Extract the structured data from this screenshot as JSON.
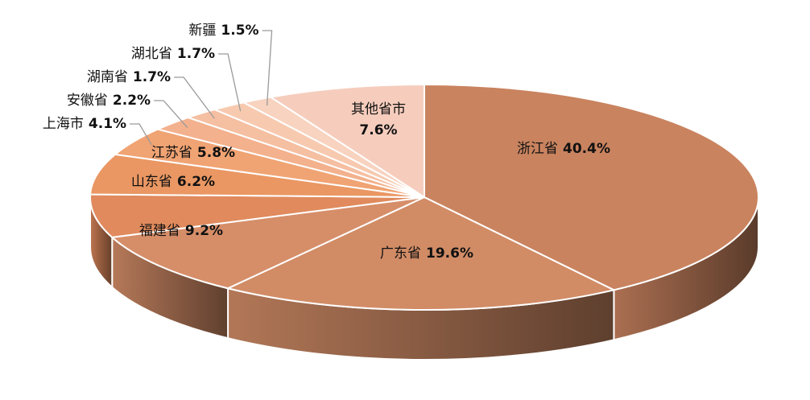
{
  "chart_data": {
    "type": "pie",
    "categories": [
      "浙江省",
      "广东省",
      "福建省",
      "山东省",
      "江苏省",
      "上海市",
      "安徽省",
      "湖南省",
      "湖北省",
      "新疆",
      "其他省市"
    ],
    "values": [
      40.4,
      19.6,
      9.2,
      6.2,
      5.8,
      4.1,
      2.2,
      1.7,
      1.7,
      1.5,
      7.6
    ],
    "value_labels": [
      "40.4%",
      "19.6%",
      "9.2%",
      "6.2%",
      "5.8%",
      "4.1%",
      "2.2%",
      "1.7%",
      "1.7%",
      "1.5%",
      "7.6%"
    ],
    "colors": [
      "#c9835f",
      "#d18c66",
      "#d68e69",
      "#e08a5d",
      "#ea9763",
      "#f0a373",
      "#f3b18d",
      "#f5bfa2",
      "#f7cab0",
      "#f8d3bf",
      "#f6cdbd"
    ]
  }
}
